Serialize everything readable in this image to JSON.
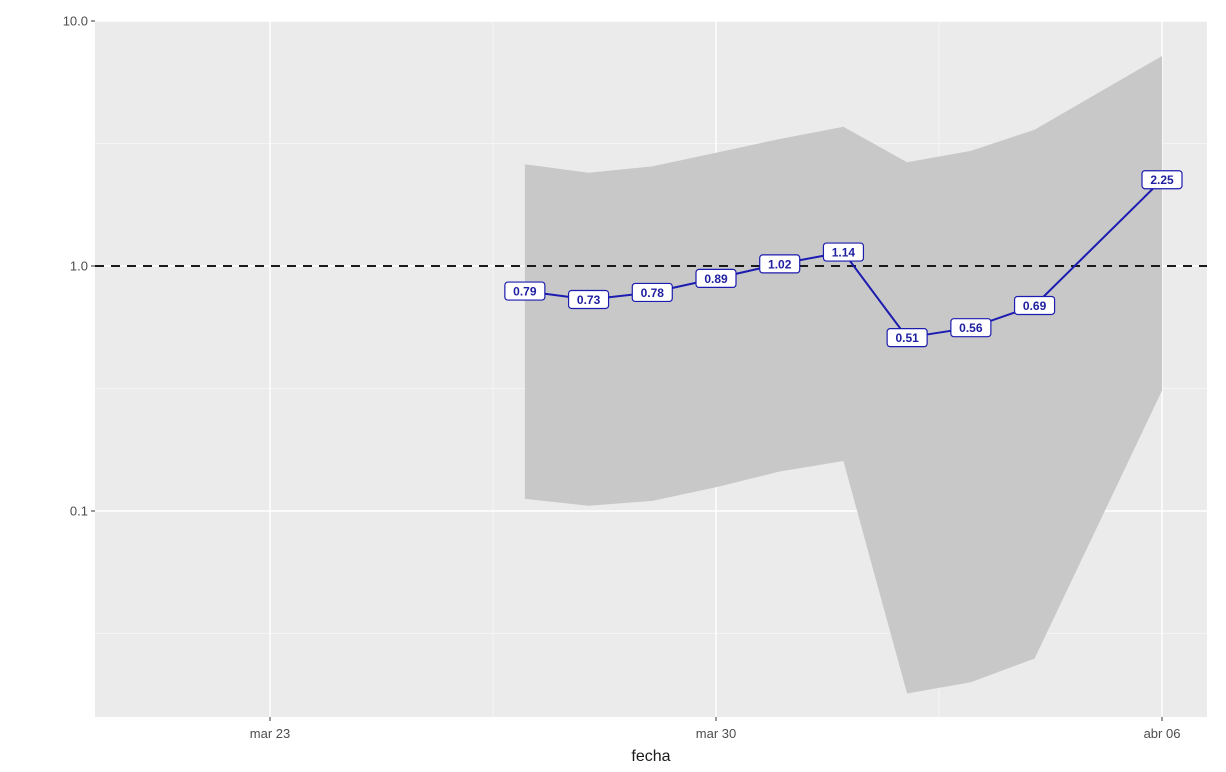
{
  "chart_data": {
    "type": "line",
    "title": "",
    "xlabel": "fecha",
    "ylabel": "",
    "y_scale": "log10",
    "ylim": [
      0.012,
      10.0
    ],
    "xlim": [
      "2020-03-20",
      "2020-04-07"
    ],
    "y_ticks": [
      {
        "value": 10.0,
        "label": "10.0"
      },
      {
        "value": 1.0,
        "label": "1.0"
      },
      {
        "value": 0.1,
        "label": "0.1"
      }
    ],
    "x_ticks": [
      {
        "value": "2020-03-23",
        "label": "mar 23"
      },
      {
        "value": "2020-03-30",
        "label": "mar 30"
      },
      {
        "value": "2020-04-06",
        "label": "abr 06"
      }
    ],
    "grid": true,
    "reference_line": {
      "y": 1.0,
      "style": "dashed",
      "color": "#1a1a1a"
    },
    "series": [
      {
        "color": "#1c1cb0",
        "points": [
          {
            "x": "2020-03-27",
            "y": 0.79,
            "label": "0.79"
          },
          {
            "x": "2020-03-28",
            "y": 0.73,
            "label": "0.73"
          },
          {
            "x": "2020-03-29",
            "y": 0.78,
            "label": "0.78"
          },
          {
            "x": "2020-03-30",
            "y": 0.89,
            "label": "0.89"
          },
          {
            "x": "2020-03-31",
            "y": 1.02,
            "label": "1.02"
          },
          {
            "x": "2020-04-01",
            "y": 1.14,
            "label": "1.14"
          },
          {
            "x": "2020-04-02",
            "y": 0.51,
            "label": "0.51"
          },
          {
            "x": "2020-04-03",
            "y": 0.56,
            "label": "0.56"
          },
          {
            "x": "2020-04-04",
            "y": 0.69,
            "label": "0.69"
          },
          {
            "x": "2020-04-06",
            "y": 2.25,
            "label": "2.25"
          }
        ]
      }
    ],
    "ribbon": {
      "color": "#c8c8c8",
      "points": [
        {
          "x": "2020-03-27",
          "lower": 0.112,
          "upper": 2.6
        },
        {
          "x": "2020-03-28",
          "lower": 0.105,
          "upper": 2.4
        },
        {
          "x": "2020-03-29",
          "lower": 0.11,
          "upper": 2.55
        },
        {
          "x": "2020-03-30",
          "lower": 0.125,
          "upper": 2.9
        },
        {
          "x": "2020-03-31",
          "lower": 0.145,
          "upper": 3.3
        },
        {
          "x": "2020-04-01",
          "lower": 0.16,
          "upper": 3.7
        },
        {
          "x": "2020-04-02",
          "lower": 0.018,
          "upper": 2.65
        },
        {
          "x": "2020-04-03",
          "lower": 0.02,
          "upper": 2.95
        },
        {
          "x": "2020-04-04",
          "lower": 0.025,
          "upper": 3.6
        },
        {
          "x": "2020-04-06",
          "lower": 0.31,
          "upper": 7.2
        }
      ]
    },
    "colors": {
      "panel_background": "#ebebeb",
      "grid_major": "#ffffff",
      "grid_minor": "#f4f4f4",
      "label_fill": "#ffffff",
      "label_border": "#1c1cb0"
    }
  }
}
